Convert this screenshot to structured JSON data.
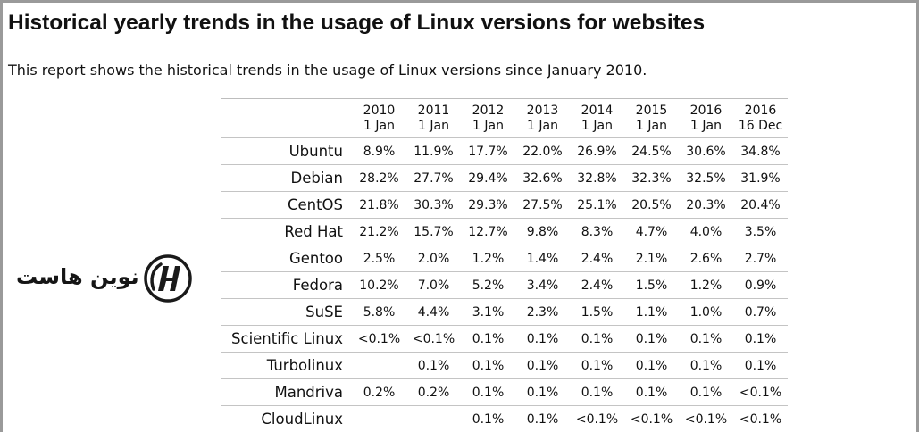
{
  "report": {
    "title": "Historical yearly trends in the usage of Linux versions for websites",
    "intro": "This report shows the historical trends in the usage of Linux versions since January 2010."
  },
  "logo": {
    "text": "نوین هاست",
    "icon": "nh-monogram-icon"
  },
  "table": {
    "columns": [
      {
        "year": "2010",
        "date": "1 Jan"
      },
      {
        "year": "2011",
        "date": "1 Jan"
      },
      {
        "year": "2012",
        "date": "1 Jan"
      },
      {
        "year": "2013",
        "date": "1 Jan"
      },
      {
        "year": "2014",
        "date": "1 Jan"
      },
      {
        "year": "2015",
        "date": "1 Jan"
      },
      {
        "year": "2016",
        "date": "1 Jan"
      },
      {
        "year": "2016",
        "date": "16 Dec"
      }
    ],
    "rows": [
      {
        "name": "Ubuntu",
        "values": [
          "8.9%",
          "11.9%",
          "17.7%",
          "22.0%",
          "26.9%",
          "24.5%",
          "30.6%",
          "34.8%"
        ]
      },
      {
        "name": "Debian",
        "values": [
          "28.2%",
          "27.7%",
          "29.4%",
          "32.6%",
          "32.8%",
          "32.3%",
          "32.5%",
          "31.9%"
        ]
      },
      {
        "name": "CentOS",
        "values": [
          "21.8%",
          "30.3%",
          "29.3%",
          "27.5%",
          "25.1%",
          "20.5%",
          "20.3%",
          "20.4%"
        ]
      },
      {
        "name": "Red Hat",
        "values": [
          "21.2%",
          "15.7%",
          "12.7%",
          "9.8%",
          "8.3%",
          "4.7%",
          "4.0%",
          "3.5%"
        ]
      },
      {
        "name": "Gentoo",
        "values": [
          "2.5%",
          "2.0%",
          "1.2%",
          "1.4%",
          "2.4%",
          "2.1%",
          "2.6%",
          "2.7%"
        ]
      },
      {
        "name": "Fedora",
        "values": [
          "10.2%",
          "7.0%",
          "5.2%",
          "3.4%",
          "2.4%",
          "1.5%",
          "1.2%",
          "0.9%"
        ]
      },
      {
        "name": "SuSE",
        "values": [
          "5.8%",
          "4.4%",
          "3.1%",
          "2.3%",
          "1.5%",
          "1.1%",
          "1.0%",
          "0.7%"
        ]
      },
      {
        "name": "Scientific Linux",
        "values": [
          "<0.1%",
          "<0.1%",
          "0.1%",
          "0.1%",
          "0.1%",
          "0.1%",
          "0.1%",
          "0.1%"
        ]
      },
      {
        "name": "Turbolinux",
        "values": [
          "",
          "0.1%",
          "0.1%",
          "0.1%",
          "0.1%",
          "0.1%",
          "0.1%",
          "0.1%"
        ]
      },
      {
        "name": "Mandriva",
        "values": [
          "0.2%",
          "0.2%",
          "0.1%",
          "0.1%",
          "0.1%",
          "0.1%",
          "0.1%",
          "<0.1%"
        ]
      },
      {
        "name": "CloudLinux",
        "values": [
          "",
          "",
          "0.1%",
          "0.1%",
          "<0.1%",
          "<0.1%",
          "<0.1%",
          "<0.1%"
        ]
      }
    ]
  }
}
